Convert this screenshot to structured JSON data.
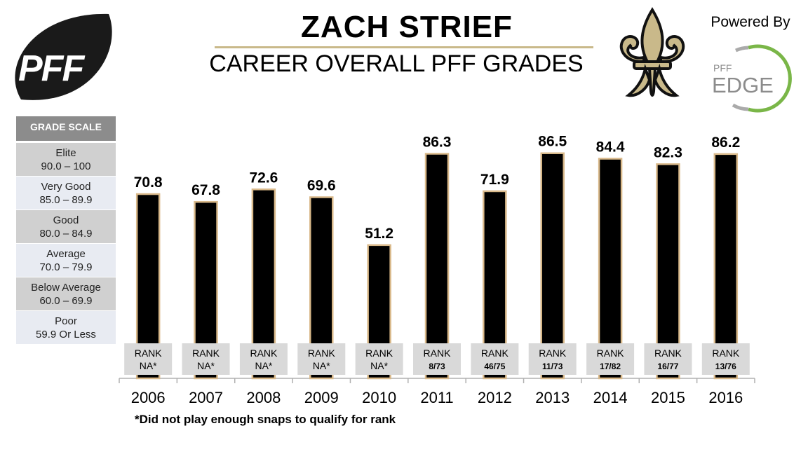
{
  "header": {
    "player_name": "ZACH STRIEF",
    "subtitle": "CAREER OVERALL PFF GRADES",
    "powered_by": "Powered By"
  },
  "logos": {
    "pff_logo_text": "PFF",
    "edge_small": "PFF",
    "edge_large": "EDGE",
    "team_logo": "fleur-de-lis"
  },
  "grade_scale": {
    "title": "GRADE SCALE",
    "rows": [
      {
        "label": "Elite",
        "range": "90.0 – 100"
      },
      {
        "label": "Very Good",
        "range": "85.0 – 89.9"
      },
      {
        "label": "Good",
        "range": "80.0 – 84.9"
      },
      {
        "label": "Average",
        "range": "70.0 – 79.9"
      },
      {
        "label": "Below Average",
        "range": "60.0 – 69.9"
      },
      {
        "label": "Poor",
        "range": "59.9 Or Less"
      }
    ]
  },
  "colors": {
    "bar_fill": "#000000",
    "bar_outline": "#d9b98a",
    "rank_box": "#d9d9d9",
    "gold": "#c9b98a",
    "edge_green": "#7ab648"
  },
  "chart_data": {
    "type": "bar",
    "categories": [
      "2006",
      "2007",
      "2008",
      "2009",
      "2010",
      "2011",
      "2012",
      "2013",
      "2014",
      "2015",
      "2016"
    ],
    "values": [
      70.8,
      67.8,
      72.6,
      69.6,
      51.2,
      86.3,
      71.9,
      86.5,
      84.4,
      82.3,
      86.2
    ],
    "value_labels": [
      "70.8",
      "67.8",
      "72.6",
      "69.6",
      "51.2",
      "86.3",
      "71.9",
      "86.5",
      "84.4",
      "82.3",
      "86.2"
    ],
    "ranks": [
      "NA*",
      "NA*",
      "NA*",
      "NA*",
      "NA*",
      "8/73",
      "46/75",
      "11/73",
      "17/82",
      "16/77",
      "13/76"
    ],
    "rank_label": "RANK",
    "title": "CAREER OVERALL PFF GRADES",
    "xlabel": "",
    "ylabel": "",
    "ylim": [
      0,
      90
    ],
    "grid": false,
    "legend": "none"
  },
  "footnote": "*Did not play enough snaps to qualify for rank"
}
